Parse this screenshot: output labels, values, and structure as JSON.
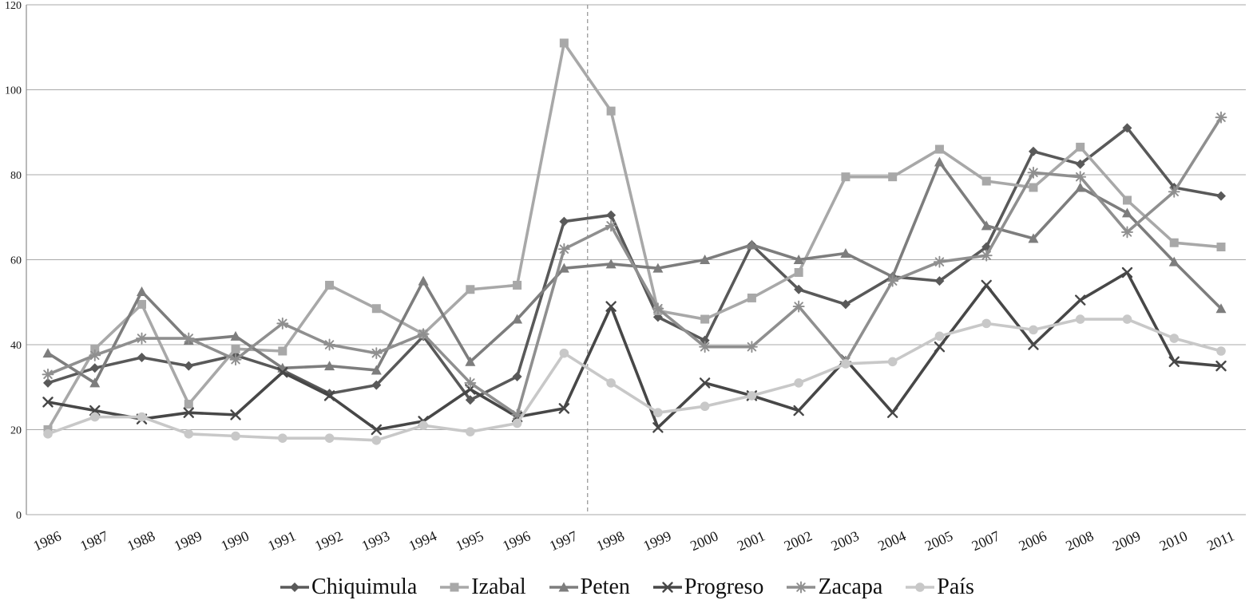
{
  "chart_data": {
    "type": "line",
    "title": "",
    "xlabel": "",
    "ylabel": "",
    "x_categories": [
      "1986",
      "1987",
      "1988",
      "1989",
      "1990",
      "1991",
      "1992",
      "1993",
      "1994",
      "1995",
      "1996",
      "1997",
      "1998",
      "1999",
      "2000",
      "2001",
      "2002",
      "2003",
      "2004",
      "2005",
      "2007",
      "2006",
      "2008",
      "2009",
      "2010",
      "2011"
    ],
    "y_ticks": [
      0,
      20,
      40,
      60,
      80,
      100,
      120
    ],
    "ylim": [
      0,
      120
    ],
    "grid": "horizontal-only",
    "gridline_color": "#a9a9a9",
    "axis_color": "#8c8c8c",
    "dashed_reference_line": {
      "between": [
        "1997",
        "1998"
      ],
      "style": "dashed",
      "color": "#9a9a9a"
    },
    "legend_position": "bottom-center",
    "series": [
      {
        "name": "Chiquimula",
        "marker": "diamond",
        "color": "#595959",
        "values": [
          31,
          34.5,
          37,
          35,
          37.5,
          34,
          28.5,
          30.5,
          42,
          27,
          32.5,
          69,
          70.5,
          46.5,
          41,
          63.5,
          53,
          49.5,
          56,
          55,
          63,
          85.5,
          82.5,
          91,
          77,
          75
        ]
      },
      {
        "name": "Izabal",
        "marker": "square",
        "color": "#a8a8a8",
        "values": [
          20,
          39,
          49.5,
          26,
          39,
          38.5,
          54,
          48.5,
          42.5,
          53,
          54,
          111,
          95,
          48,
          46,
          51,
          57,
          79.5,
          79.5,
          86,
          78.5,
          77,
          86.5,
          74,
          64,
          63
        ]
      },
      {
        "name": "Peten",
        "marker": "triangle",
        "color": "#7d7d7d",
        "values": [
          38,
          31,
          52.5,
          41,
          42,
          34.5,
          35,
          34,
          55,
          36,
          46,
          58,
          59,
          58,
          60,
          63.5,
          60,
          61.5,
          56,
          83,
          68,
          65,
          77,
          71,
          59.5,
          48.5
        ]
      },
      {
        "name": "Progreso",
        "marker": "x",
        "color": "#474747",
        "values": [
          26.5,
          24.5,
          22.5,
          24,
          23.5,
          33.5,
          28,
          20,
          22,
          29.5,
          23,
          25,
          49,
          20.5,
          31,
          28,
          24.5,
          36.5,
          24,
          39.5,
          54,
          40,
          50.5,
          57,
          36,
          35
        ]
      },
      {
        "name": "Zacapa",
        "marker": "asterisk",
        "color": "#8f8f8f",
        "values": [
          33,
          37.5,
          41.5,
          41.5,
          36.5,
          45,
          40,
          38,
          42.5,
          31,
          23.5,
          62.5,
          68,
          48.5,
          39.5,
          39.5,
          49,
          36,
          55,
          59.5,
          61,
          80.5,
          79.5,
          66.5,
          76,
          93.5
        ]
      },
      {
        "name": "País",
        "marker": "circle",
        "color": "#c8c8c8",
        "values": [
          19,
          23,
          23,
          19,
          18.5,
          18,
          18,
          17.5,
          21,
          19.5,
          21.5,
          38,
          31,
          24,
          25.5,
          28,
          31,
          35.5,
          36,
          42,
          45,
          43.5,
          46,
          46,
          41.5,
          38.5
        ]
      }
    ]
  }
}
